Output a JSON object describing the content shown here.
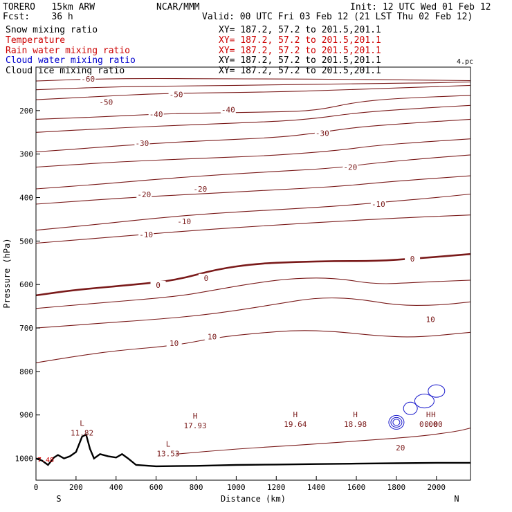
{
  "header": {
    "model": "TORERO   15km ARW",
    "forecast": "Fcst:    36 h",
    "center": "NCAR/MMM",
    "init": "Init: 12 UTC Wed 01 Feb 12",
    "valid": "Valid: 00 UTC Fri 03 Feb 12 (21 LST Thu 02 Feb 12)"
  },
  "fields": [
    {
      "name": "Snow mixing ratio",
      "xy": "XY= 187.2, 57.2 to 201.5,201.1",
      "color": "#000000",
      "xycolor": "#000000"
    },
    {
      "name": "Temperature",
      "xy": "XY= 187.2, 57.2 to 201.5,201.1",
      "color": "#cc0000",
      "xycolor": "#cc0000"
    },
    {
      "name": "Rain water mixing ratio",
      "xy": "XY= 187.2, 57.2 to 201.5,201.1",
      "color": "#cc0000",
      "xycolor": "#cc0000"
    },
    {
      "name": "Cloud water mixing ratio",
      "xy": "XY= 187.2, 57.2 to 201.5,201.1",
      "color": "#0000cc",
      "xycolor": "#000000"
    },
    {
      "name": "Cloud ice mixing ratio",
      "xy": "XY= 187.2, 57.2 to 201.5,201.1",
      "color": "#000000",
      "xycolor": "#000000"
    }
  ],
  "chart_data": {
    "type": "cross-section contour",
    "xlabel": "Distance (km)",
    "ylabel": "Pressure (hPa)",
    "xlim": [
      0,
      2170
    ],
    "ylim": [
      1050,
      100
    ],
    "xticks": [
      0,
      200,
      400,
      600,
      800,
      1000,
      1200,
      1400,
      1600,
      1800,
      2000
    ],
    "yticks": [
      200,
      300,
      400,
      500,
      600,
      700,
      800,
      900,
      1000
    ],
    "x_end_labels": {
      "left": "S",
      "right": "N"
    },
    "corner_label": "4.pc",
    "isotherms": [
      {
        "label": "-60",
        "bold": false,
        "points": [
          [
            0,
            132
          ],
          [
            300,
            127
          ],
          [
            600,
            126
          ],
          [
            900,
            127
          ],
          [
            1200,
            127
          ],
          [
            1500,
            128
          ],
          [
            1800,
            129
          ],
          [
            2170,
            131
          ]
        ],
        "labels": [
          [
            260,
            127
          ]
        ]
      },
      {
        "label": "",
        "bold": false,
        "points": [
          [
            0,
            152
          ],
          [
            400,
            145
          ],
          [
            800,
            143
          ],
          [
            1200,
            141
          ],
          [
            1600,
            138
          ],
          [
            2000,
            136
          ],
          [
            2170,
            134
          ]
        ],
        "labels": []
      },
      {
        "label": "-50",
        "bold": false,
        "points": [
          [
            0,
            175
          ],
          [
            300,
            168
          ],
          [
            600,
            161
          ],
          [
            900,
            159
          ],
          [
            1200,
            157
          ],
          [
            1500,
            153
          ],
          [
            1800,
            148
          ],
          [
            2170,
            142
          ]
        ],
        "labels": [
          [
            700,
            163
          ],
          [
            350,
            180
          ]
        ]
      },
      {
        "label": "-40",
        "bold": false,
        "points": [
          [
            0,
            220
          ],
          [
            300,
            215
          ],
          [
            600,
            208
          ],
          [
            900,
            205
          ],
          [
            1200,
            203
          ],
          [
            1400,
            200
          ],
          [
            1600,
            180
          ],
          [
            1800,
            172
          ],
          [
            2170,
            165
          ]
        ],
        "labels": [
          [
            600,
            208
          ],
          [
            960,
            198
          ]
        ]
      },
      {
        "label": "",
        "bold": false,
        "points": [
          [
            0,
            250
          ],
          [
            400,
            240
          ],
          [
            800,
            232
          ],
          [
            1200,
            225
          ],
          [
            1400,
            218
          ],
          [
            1600,
            205
          ],
          [
            1900,
            195
          ],
          [
            2170,
            188
          ]
        ],
        "labels": []
      },
      {
        "label": "-30",
        "bold": false,
        "points": [
          [
            0,
            295
          ],
          [
            300,
            285
          ],
          [
            600,
            275
          ],
          [
            900,
            268
          ],
          [
            1200,
            262
          ],
          [
            1400,
            252
          ],
          [
            1600,
            238
          ],
          [
            1900,
            228
          ],
          [
            2170,
            220
          ]
        ],
        "labels": [
          [
            530,
            275
          ],
          [
            1430,
            252
          ]
        ]
      },
      {
        "label": "",
        "bold": false,
        "points": [
          [
            0,
            330
          ],
          [
            400,
            318
          ],
          [
            800,
            310
          ],
          [
            1200,
            303
          ],
          [
            1500,
            292
          ],
          [
            1700,
            280
          ],
          [
            2000,
            270
          ],
          [
            2170,
            265
          ]
        ],
        "labels": []
      },
      {
        "label": "-20",
        "bold": false,
        "points": [
          [
            0,
            380
          ],
          [
            300,
            370
          ],
          [
            600,
            358
          ],
          [
            900,
            348
          ],
          [
            1200,
            340
          ],
          [
            1500,
            332
          ],
          [
            1700,
            320
          ],
          [
            2000,
            308
          ],
          [
            2170,
            302
          ]
        ],
        "labels": [
          [
            540,
            393
          ],
          [
            820,
            380
          ],
          [
            1570,
            330
          ]
        ]
      },
      {
        "label": "",
        "bold": false,
        "points": [
          [
            0,
            415
          ],
          [
            400,
            402
          ],
          [
            800,
            392
          ],
          [
            1200,
            382
          ],
          [
            1500,
            375
          ],
          [
            1800,
            362
          ],
          [
            2170,
            350
          ]
        ],
        "labels": []
      },
      {
        "label": "-10",
        "bold": false,
        "points": [
          [
            0,
            475
          ],
          [
            300,
            462
          ],
          [
            600,
            447
          ],
          [
            900,
            436
          ],
          [
            1200,
            428
          ],
          [
            1500,
            420
          ],
          [
            1700,
            412
          ],
          [
            2000,
            400
          ],
          [
            2170,
            392
          ]
        ],
        "labels": [
          [
            550,
            485
          ],
          [
            740,
            455
          ],
          [
            1710,
            415
          ]
        ]
      },
      {
        "label": "",
        "bold": false,
        "points": [
          [
            0,
            505
          ],
          [
            400,
            490
          ],
          [
            800,
            475
          ],
          [
            1200,
            463
          ],
          [
            1500,
            455
          ],
          [
            1800,
            447
          ],
          [
            2170,
            440
          ]
        ],
        "labels": []
      },
      {
        "label": "0",
        "bold": true,
        "points": [
          [
            0,
            625
          ],
          [
            200,
            612
          ],
          [
            500,
            600
          ],
          [
            700,
            590
          ],
          [
            900,
            565
          ],
          [
            1100,
            552
          ],
          [
            1300,
            548
          ],
          [
            1500,
            546
          ],
          [
            1700,
            546
          ],
          [
            1900,
            540
          ],
          [
            2170,
            530
          ]
        ],
        "labels": [
          [
            610,
            601
          ],
          [
            850,
            585
          ],
          [
            1880,
            541
          ]
        ]
      },
      {
        "label": "",
        "bold": false,
        "points": [
          [
            0,
            655
          ],
          [
            300,
            643
          ],
          [
            700,
            628
          ],
          [
            900,
            612
          ],
          [
            1100,
            596
          ],
          [
            1300,
            585
          ],
          [
            1500,
            585
          ],
          [
            1700,
            600
          ],
          [
            1900,
            595
          ],
          [
            2170,
            590
          ]
        ],
        "labels": []
      },
      {
        "label": "10",
        "bold": false,
        "points": [
          [
            0,
            700
          ],
          [
            300,
            690
          ],
          [
            600,
            680
          ],
          [
            800,
            672
          ],
          [
            1000,
            660
          ],
          [
            1200,
            645
          ],
          [
            1400,
            630
          ],
          [
            1600,
            632
          ],
          [
            1800,
            648
          ],
          [
            2000,
            648
          ],
          [
            2170,
            640
          ]
        ],
        "labels": [
          [
            690,
            735
          ],
          [
            880,
            720
          ],
          [
            1970,
            680
          ]
        ]
      },
      {
        "label": "",
        "bold": false,
        "points": [
          [
            0,
            780
          ],
          [
            200,
            765
          ],
          [
            400,
            752
          ],
          [
            700,
            740
          ],
          [
            900,
            722
          ],
          [
            1100,
            712
          ],
          [
            1300,
            705
          ],
          [
            1500,
            708
          ],
          [
            1700,
            718
          ],
          [
            1900,
            722
          ],
          [
            2170,
            710
          ]
        ],
        "labels": []
      },
      {
        "label": "20",
        "bold": false,
        "points": [
          [
            700,
            990
          ],
          [
            1000,
            978
          ],
          [
            1300,
            970
          ],
          [
            1600,
            960
          ],
          [
            1900,
            950
          ],
          [
            2100,
            938
          ],
          [
            2170,
            930
          ]
        ],
        "labels": [
          [
            1820,
            975
          ]
        ]
      }
    ],
    "extremes": [
      {
        "type": "L",
        "value": "11.82",
        "x": 230,
        "y": 935
      },
      {
        "type": "L",
        "value": "13.53",
        "x": 660,
        "y": 982
      },
      {
        "type": "H",
        "value": "17.93",
        "x": 795,
        "y": 918
      },
      {
        "type": "H",
        "value": "19.64",
        "x": 1295,
        "y": 915
      },
      {
        "type": "H",
        "value": "18.98",
        "x": 1595,
        "y": 915
      },
      {
        "type": "H",
        "value": "0.00",
        "x": 1960,
        "y": 915
      },
      {
        "type": "H",
        "value": "0.00",
        "x": 1985,
        "y": 915
      }
    ],
    "extreme_label_text": "H",
    "low_label_text": "L",
    "corner_value": "7.48",
    "hh_label": "HH",
    "hh_value": "0.00.00",
    "terrain": [
      [
        0,
        1000
      ],
      [
        30,
        1005
      ],
      [
        60,
        1015
      ],
      [
        90,
        998
      ],
      [
        110,
        992
      ],
      [
        140,
        1000
      ],
      [
        170,
        995
      ],
      [
        200,
        985
      ],
      [
        230,
        950
      ],
      [
        250,
        945
      ],
      [
        270,
        978
      ],
      [
        290,
        1000
      ],
      [
        320,
        990
      ],
      [
        360,
        995
      ],
      [
        400,
        998
      ],
      [
        430,
        990
      ],
      [
        460,
        1000
      ],
      [
        500,
        1015
      ],
      [
        600,
        1018
      ],
      [
        800,
        1017
      ],
      [
        1000,
        1015
      ],
      [
        1200,
        1014
      ],
      [
        1400,
        1013
      ],
      [
        1600,
        1012
      ],
      [
        1800,
        1011
      ],
      [
        2000,
        1010
      ],
      [
        2170,
        1010
      ]
    ],
    "cloud_contours": [
      {
        "cx": 1800,
        "cy": 917,
        "rx": 22,
        "ry": 20
      },
      {
        "cx": 1800,
        "cy": 917,
        "rx": 16,
        "ry": 14
      },
      {
        "cx": 1800,
        "cy": 917,
        "rx": 10,
        "ry": 9
      },
      {
        "cx": 1870,
        "cy": 885,
        "rx": 20,
        "ry": 18
      },
      {
        "cx": 1940,
        "cy": 868,
        "rx": 28,
        "ry": 20
      },
      {
        "cx": 2000,
        "cy": 845,
        "rx": 24,
        "ry": 18
      }
    ]
  }
}
